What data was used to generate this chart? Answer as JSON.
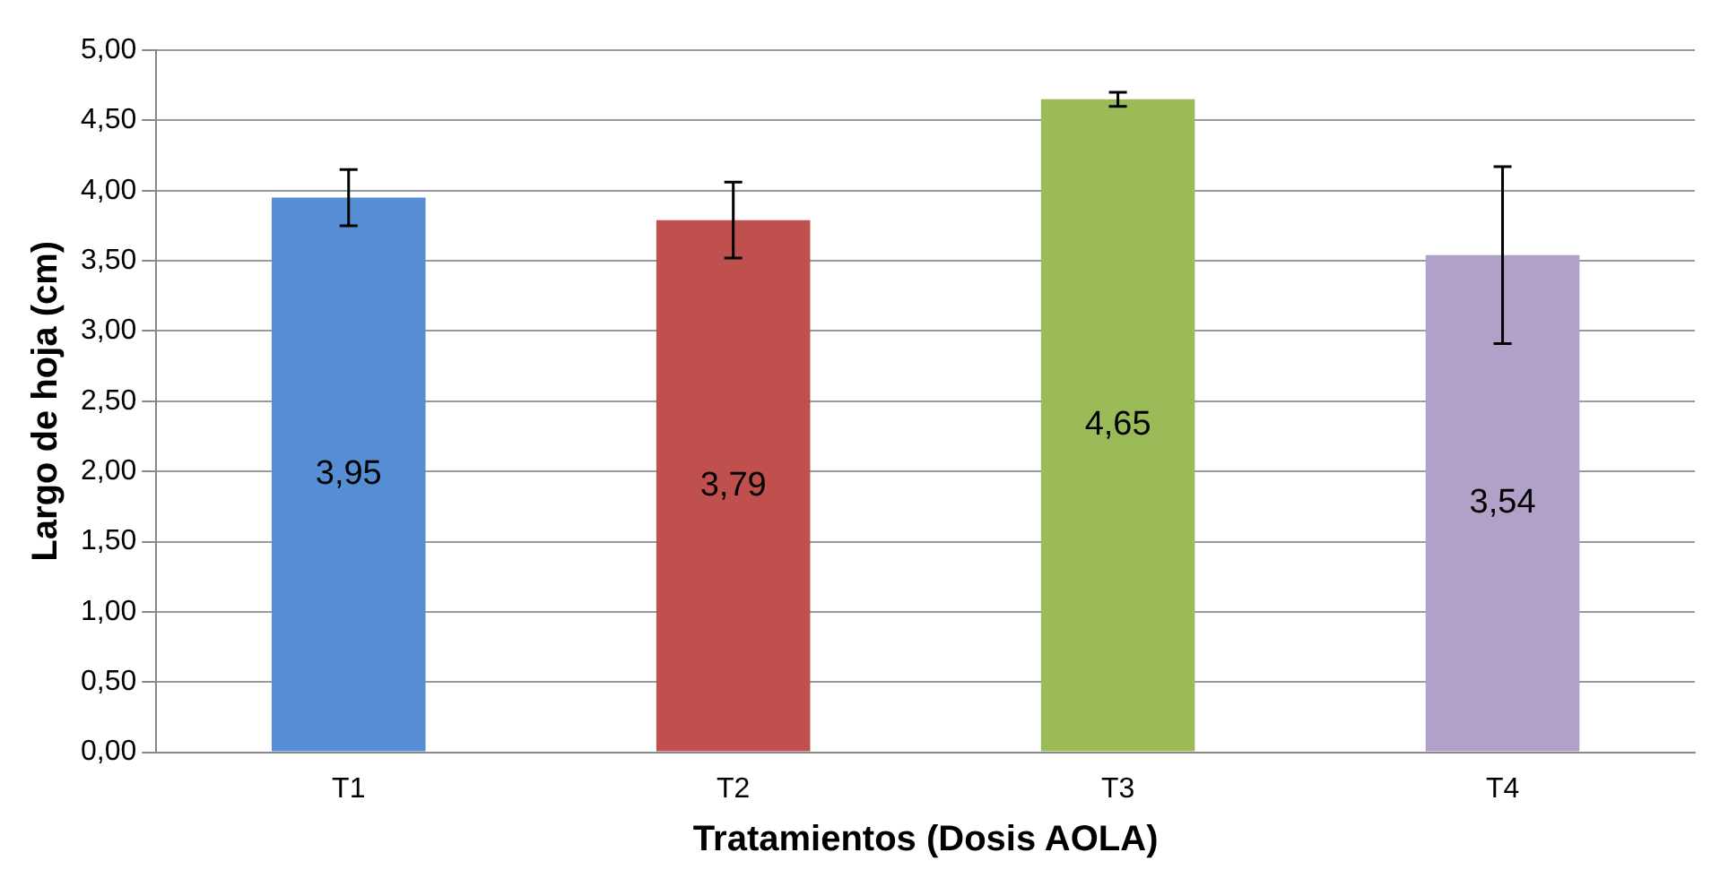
{
  "chart_data": {
    "type": "bar",
    "xlabel": "Tratamientos (Dosis AOLA)",
    "ylabel": "Largo de hoja (cm)",
    "categories": [
      "T1",
      "T2",
      "T3",
      "T4"
    ],
    "values": [
      3.95,
      3.79,
      4.65,
      3.54
    ],
    "value_labels": [
      "3,95",
      "3,79",
      "4,65",
      "3,54"
    ],
    "colors": [
      "#558ed5",
      "#c0504d",
      "#9bbb59",
      "#b1a0c7"
    ],
    "errors": [
      0.2,
      0.27,
      0.05,
      0.63
    ],
    "ylim": [
      0,
      5
    ],
    "yticks": [
      {
        "value": 0,
        "label": "0,00"
      },
      {
        "value": 0.5,
        "label": "0,50"
      },
      {
        "value": 1,
        "label": "1,00"
      },
      {
        "value": 1.5,
        "label": "1,50"
      },
      {
        "value": 2,
        "label": "2,00"
      },
      {
        "value": 2.5,
        "label": "2,50"
      },
      {
        "value": 3,
        "label": "3,00"
      },
      {
        "value": 3.5,
        "label": "3,50"
      },
      {
        "value": 4,
        "label": "4,00"
      },
      {
        "value": 4.5,
        "label": "4,50"
      },
      {
        "value": 5,
        "label": "5,00"
      }
    ],
    "grid": "y"
  }
}
